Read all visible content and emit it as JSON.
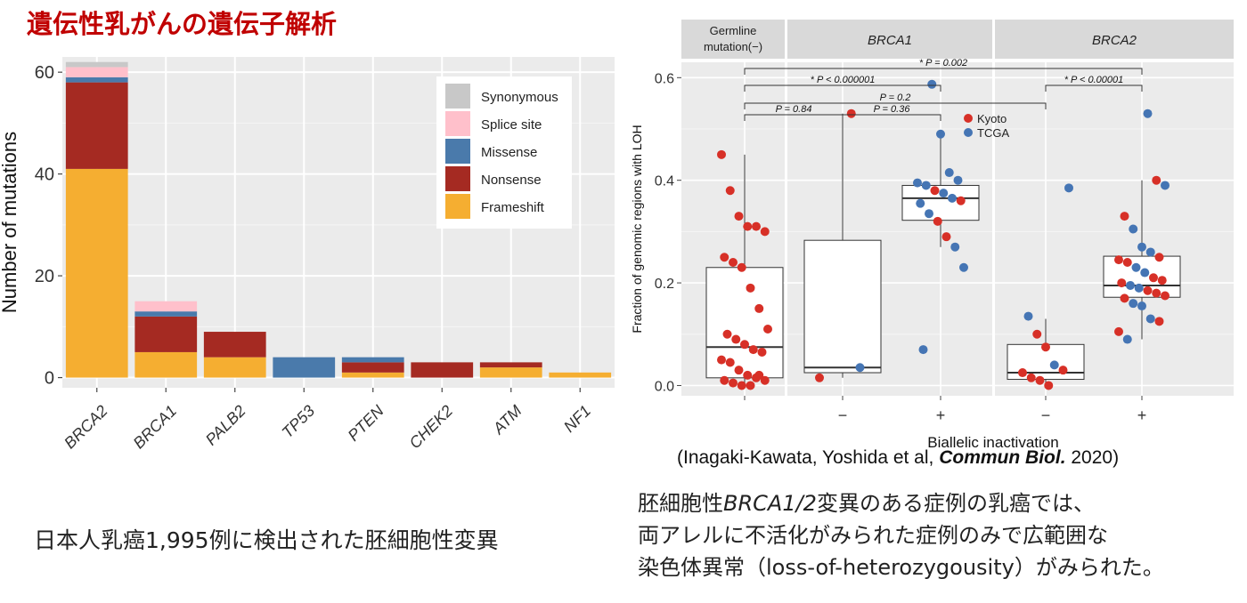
{
  "slide": {
    "title": "遺伝性乳がんの遺伝子解析",
    "left_caption": "日本人乳癌1,995例に検出された胚細胞性変異",
    "citation": {
      "pre": "(Inagaki-Kawata, Yoshida et al, ",
      "journal": "Commun Biol.",
      "post": " 2020)"
    },
    "right_caption": {
      "line1_pre": "胚細胞性",
      "line1_gene": "BRCA1/2",
      "line1_post": "変異のある症例の乳癌では、",
      "line2": "両アレルに不活化がみられた症例のみで広範囲な",
      "line3": "染色体異常（loss-of-heterozygousity）がみられた。"
    }
  },
  "colors": {
    "title": "#c00000",
    "panel_bg": "#ebebeb",
    "strip_bg": "#d9d9d9",
    "Synonymous": "#c8c8c8",
    "Splice site": "#ffc0cb",
    "Missense": "#4a7aab",
    "Nonsense": "#a52a22",
    "Frameshift": "#f5ae31",
    "Kyoto": "#d73027",
    "TCGA": "#4575b4"
  },
  "chart_data": [
    {
      "type": "bar",
      "stacked": true,
      "categories": [
        "BRCA2",
        "BRCA1",
        "PALB2",
        "TP53",
        "PTEN",
        "CHEK2",
        "ATM",
        "NF1"
      ],
      "series": [
        {
          "name": "Frameshift",
          "values": [
            41,
            5,
            4,
            0,
            1,
            0,
            2,
            1
          ]
        },
        {
          "name": "Nonsense",
          "values": [
            17,
            7,
            5,
            0,
            2,
            3,
            1,
            0
          ]
        },
        {
          "name": "Missense",
          "values": [
            1,
            1,
            0,
            4,
            1,
            0,
            0,
            0
          ]
        },
        {
          "name": "Splice site",
          "values": [
            2,
            2,
            0,
            0,
            0,
            0,
            0,
            0
          ]
        },
        {
          "name": "Synonymous",
          "values": [
            1,
            0,
            0,
            0,
            0,
            0,
            0,
            0
          ]
        }
      ],
      "legend_order": [
        "Synonymous",
        "Splice site",
        "Missense",
        "Nonsense",
        "Frameshift"
      ],
      "ylabel": "Number of mutations",
      "xlabel": "",
      "ylim": [
        -2,
        63
      ],
      "yticks": [
        0,
        20,
        40,
        60
      ],
      "grid": true,
      "legend_position": "top-right"
    },
    {
      "type": "scatter",
      "subtype": "boxplot-with-jitter",
      "ylabel": "Fraction of genomic regions with LOH",
      "xlabel": "Biallelic inactivation",
      "ylim": [
        -0.02,
        0.63
      ],
      "yticks": [
        "0.0",
        "0.2",
        "0.4",
        "0.6"
      ],
      "facets": [
        "Germline mutation(−)",
        "BRCA1",
        "BRCA2"
      ],
      "groups": [
        {
          "facet": "Germline mutation(−)",
          "label": "",
          "box": {
            "q1": 0.015,
            "median": 0.075,
            "q3": 0.23,
            "min": 0.0,
            "max": 0.45
          },
          "points": [
            {
              "y": 0.45,
              "s": "Kyoto"
            },
            {
              "y": 0.38,
              "s": "Kyoto"
            },
            {
              "y": 0.33,
              "s": "Kyoto"
            },
            {
              "y": 0.31,
              "s": "Kyoto"
            },
            {
              "y": 0.31,
              "s": "Kyoto"
            },
            {
              "y": 0.3,
              "s": "Kyoto"
            },
            {
              "y": 0.25,
              "s": "Kyoto"
            },
            {
              "y": 0.24,
              "s": "Kyoto"
            },
            {
              "y": 0.23,
              "s": "Kyoto"
            },
            {
              "y": 0.19,
              "s": "Kyoto"
            },
            {
              "y": 0.15,
              "s": "Kyoto"
            },
            {
              "y": 0.11,
              "s": "Kyoto"
            },
            {
              "y": 0.1,
              "s": "Kyoto"
            },
            {
              "y": 0.09,
              "s": "Kyoto"
            },
            {
              "y": 0.08,
              "s": "Kyoto"
            },
            {
              "y": 0.07,
              "s": "Kyoto"
            },
            {
              "y": 0.065,
              "s": "Kyoto"
            },
            {
              "y": 0.05,
              "s": "Kyoto"
            },
            {
              "y": 0.045,
              "s": "Kyoto"
            },
            {
              "y": 0.03,
              "s": "Kyoto"
            },
            {
              "y": 0.02,
              "s": "Kyoto"
            },
            {
              "y": 0.015,
              "s": "Kyoto"
            },
            {
              "y": 0.01,
              "s": "Kyoto"
            },
            {
              "y": 0.01,
              "s": "Kyoto"
            },
            {
              "y": 0.005,
              "s": "Kyoto"
            },
            {
              "y": 0.0,
              "s": "Kyoto"
            },
            {
              "y": 0.0,
              "s": "Kyoto"
            },
            {
              "y": 0.02,
              "s": "Kyoto"
            }
          ]
        },
        {
          "facet": "BRCA1",
          "label": "−",
          "box": {
            "q1": 0.025,
            "median": 0.035,
            "q3": 0.283,
            "min": 0.015,
            "max": 0.53
          },
          "points": [
            {
              "y": 0.53,
              "s": "Kyoto"
            },
            {
              "y": 0.035,
              "s": "TCGA"
            },
            {
              "y": 0.015,
              "s": "Kyoto"
            }
          ]
        },
        {
          "facet": "BRCA1",
          "label": "+",
          "box": {
            "q1": 0.322,
            "median": 0.365,
            "q3": 0.39,
            "min": 0.27,
            "max": 0.49
          },
          "points": [
            {
              "y": 0.587,
              "s": "TCGA"
            },
            {
              "y": 0.49,
              "s": "TCGA"
            },
            {
              "y": 0.415,
              "s": "TCGA"
            },
            {
              "y": 0.4,
              "s": "TCGA"
            },
            {
              "y": 0.395,
              "s": "TCGA"
            },
            {
              "y": 0.39,
              "s": "TCGA"
            },
            {
              "y": 0.38,
              "s": "Kyoto"
            },
            {
              "y": 0.375,
              "s": "TCGA"
            },
            {
              "y": 0.365,
              "s": "TCGA"
            },
            {
              "y": 0.36,
              "s": "Kyoto"
            },
            {
              "y": 0.355,
              "s": "TCGA"
            },
            {
              "y": 0.335,
              "s": "TCGA"
            },
            {
              "y": 0.32,
              "s": "Kyoto"
            },
            {
              "y": 0.29,
              "s": "Kyoto"
            },
            {
              "y": 0.27,
              "s": "TCGA"
            },
            {
              "y": 0.23,
              "s": "TCGA"
            },
            {
              "y": 0.07,
              "s": "TCGA"
            }
          ]
        },
        {
          "facet": "BRCA2",
          "label": "−",
          "box": {
            "q1": 0.012,
            "median": 0.025,
            "q3": 0.08,
            "min": 0.0,
            "max": 0.13
          },
          "points": [
            {
              "y": 0.385,
              "s": "TCGA"
            },
            {
              "y": 0.135,
              "s": "TCGA"
            },
            {
              "y": 0.1,
              "s": "Kyoto"
            },
            {
              "y": 0.075,
              "s": "Kyoto"
            },
            {
              "y": 0.04,
              "s": "TCGA"
            },
            {
              "y": 0.03,
              "s": "Kyoto"
            },
            {
              "y": 0.025,
              "s": "Kyoto"
            },
            {
              "y": 0.015,
              "s": "Kyoto"
            },
            {
              "y": 0.01,
              "s": "Kyoto"
            },
            {
              "y": 0.0,
              "s": "Kyoto"
            }
          ]
        },
        {
          "facet": "BRCA2",
          "label": "+",
          "box": {
            "q1": 0.172,
            "median": 0.195,
            "q3": 0.252,
            "min": 0.09,
            "max": 0.4
          },
          "points": [
            {
              "y": 0.53,
              "s": "TCGA"
            },
            {
              "y": 0.4,
              "s": "Kyoto"
            },
            {
              "y": 0.39,
              "s": "TCGA"
            },
            {
              "y": 0.33,
              "s": "Kyoto"
            },
            {
              "y": 0.305,
              "s": "TCGA"
            },
            {
              "y": 0.27,
              "s": "TCGA"
            },
            {
              "y": 0.26,
              "s": "TCGA"
            },
            {
              "y": 0.25,
              "s": "Kyoto"
            },
            {
              "y": 0.245,
              "s": "Kyoto"
            },
            {
              "y": 0.24,
              "s": "Kyoto"
            },
            {
              "y": 0.23,
              "s": "TCGA"
            },
            {
              "y": 0.22,
              "s": "TCGA"
            },
            {
              "y": 0.21,
              "s": "Kyoto"
            },
            {
              "y": 0.205,
              "s": "Kyoto"
            },
            {
              "y": 0.2,
              "s": "Kyoto"
            },
            {
              "y": 0.195,
              "s": "TCGA"
            },
            {
              "y": 0.19,
              "s": "TCGA"
            },
            {
              "y": 0.185,
              "s": "Kyoto"
            },
            {
              "y": 0.18,
              "s": "Kyoto"
            },
            {
              "y": 0.175,
              "s": "Kyoto"
            },
            {
              "y": 0.17,
              "s": "Kyoto"
            },
            {
              "y": 0.16,
              "s": "TCGA"
            },
            {
              "y": 0.155,
              "s": "TCGA"
            },
            {
              "y": 0.13,
              "s": "TCGA"
            },
            {
              "y": 0.125,
              "s": "Kyoto"
            },
            {
              "y": 0.105,
              "s": "Kyoto"
            },
            {
              "y": 0.09,
              "s": "TCGA"
            }
          ]
        }
      ],
      "comparisons": [
        {
          "groups": [
            0,
            4
          ],
          "label": "* P = 0.002"
        },
        {
          "groups": [
            0,
            2
          ],
          "label": "* P < 0.000001"
        },
        {
          "groups": [
            3,
            4
          ],
          "label": "* P < 0.00001"
        },
        {
          "groups": [
            0,
            3
          ],
          "label": "P = 0.2"
        },
        {
          "groups": [
            0,
            1
          ],
          "label": "P = 0.84"
        },
        {
          "groups": [
            1,
            2
          ],
          "label": "P = 0.36"
        }
      ],
      "legend": [
        "Kyoto",
        "TCGA"
      ],
      "legend_position": "top-right-inside",
      "grid": true
    }
  ]
}
